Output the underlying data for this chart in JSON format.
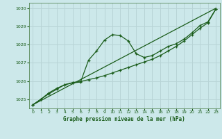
{
  "title": "Graphe pression niveau de la mer (hPa)",
  "background_color": "#cce8ea",
  "grid_color": "#b8d4d6",
  "line_color": "#1a5c1a",
  "marker_color": "#1a5c1a",
  "xlim": [
    -0.5,
    23.5
  ],
  "ylim": [
    1024.5,
    1030.3
  ],
  "yticks": [
    1025,
    1026,
    1027,
    1028,
    1029,
    1030
  ],
  "xticks": [
    0,
    1,
    2,
    3,
    4,
    5,
    6,
    7,
    8,
    9,
    10,
    11,
    12,
    13,
    14,
    15,
    16,
    17,
    18,
    19,
    20,
    21,
    22,
    23
  ],
  "series1_straight": {
    "x": [
      0,
      23
    ],
    "y": [
      1024.7,
      1030.0
    ]
  },
  "series2_wavy": {
    "x": [
      0,
      1,
      2,
      3,
      4,
      5,
      6,
      7,
      8,
      9,
      10,
      11,
      12,
      13,
      14,
      15,
      16,
      17,
      18,
      19,
      20,
      21,
      22,
      23
    ],
    "y": [
      1024.7,
      1025.0,
      1025.35,
      1025.6,
      1025.8,
      1025.9,
      1025.95,
      1027.15,
      1027.65,
      1028.25,
      1028.55,
      1028.5,
      1028.2,
      1027.5,
      1027.3,
      1027.4,
      1027.65,
      1027.9,
      1028.05,
      1028.3,
      1028.65,
      1029.05,
      1029.25,
      1029.95
    ]
  },
  "series3_smooth": {
    "x": [
      0,
      1,
      2,
      3,
      4,
      5,
      6,
      7,
      8,
      9,
      10,
      11,
      12,
      13,
      14,
      15,
      16,
      17,
      18,
      19,
      20,
      21,
      22,
      23
    ],
    "y": [
      1024.7,
      1025.0,
      1025.3,
      1025.55,
      1025.8,
      1025.92,
      1025.98,
      1026.08,
      1026.18,
      1026.3,
      1026.45,
      1026.6,
      1026.75,
      1026.9,
      1027.05,
      1027.2,
      1027.4,
      1027.65,
      1027.9,
      1028.2,
      1028.55,
      1028.9,
      1029.2,
      1029.95
    ]
  }
}
